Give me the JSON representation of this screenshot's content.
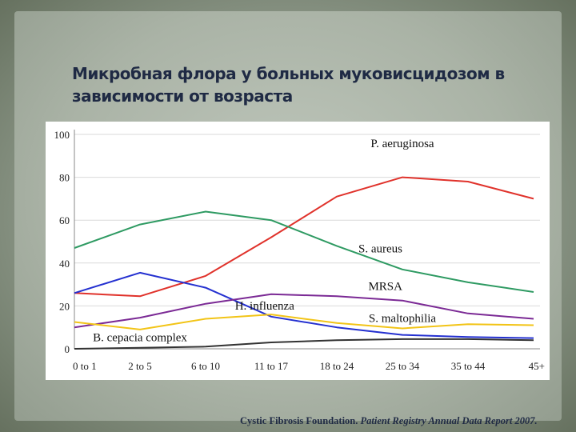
{
  "slide": {
    "title_line1": "Микробная флора у больных муковисцидозом в",
    "title_line2": "зависимости от возраста",
    "footer_source": "Cystic Fibrosis Foundation.",
    "footer_report": "Patient Registry Annual Data Report 2007."
  },
  "chart_data": {
    "type": "line",
    "title": "",
    "xlabel": "",
    "ylabel": "",
    "ylim": [
      0,
      100
    ],
    "yticks": [
      0,
      20,
      40,
      60,
      80,
      100
    ],
    "grid": true,
    "categories": [
      "0 to 1",
      "2 to 5",
      "6 to 10",
      "11 to 17",
      "18 to 24",
      "25 to 34",
      "35 to 44",
      "45+"
    ],
    "series": [
      {
        "name": "P. aeruginosa",
        "color": "#e0322b",
        "values": [
          26,
          24.5,
          34,
          52,
          71,
          80,
          78,
          70
        ]
      },
      {
        "name": "S. aureus",
        "color": "#2e9a62",
        "values": [
          47,
          58,
          64,
          60,
          48,
          37,
          31,
          26.5
        ]
      },
      {
        "name": "H. influenza",
        "color": "#2430d0",
        "values": [
          26,
          35.5,
          28.5,
          15,
          10,
          6.5,
          5.5,
          5
        ]
      },
      {
        "name": "MRSA",
        "color": "#7b2a95",
        "values": [
          10,
          14.5,
          21,
          25.5,
          24.5,
          22.5,
          16.5,
          14
        ]
      },
      {
        "name": "S. maltophilia",
        "color": "#f2c417",
        "values": [
          12.5,
          9,
          14,
          16,
          12,
          9.5,
          11.5,
          11
        ]
      },
      {
        "name": "B. cepacia complex",
        "color": "#333333",
        "values": [
          0,
          0.5,
          1,
          3,
          4,
          4.5,
          4.5,
          4
        ]
      }
    ]
  }
}
